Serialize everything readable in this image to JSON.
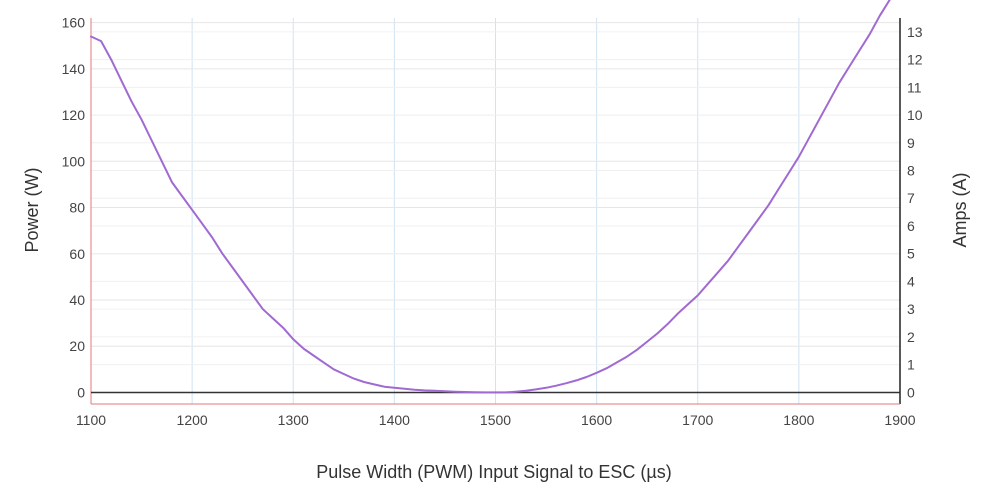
{
  "chart_data": {
    "type": "line",
    "xlabel": "Pulse Width (PWM) Input Signal to ESC (µs)",
    "ylabel": "Power (W)",
    "y2label": "Amps (A)",
    "xlim": [
      1100,
      1900
    ],
    "ylim": [
      -5,
      162
    ],
    "y2lim": [
      -0.42,
      13.5
    ],
    "xticks": [
      "1100",
      "1200",
      "1300",
      "1400",
      "1500",
      "1600",
      "1700",
      "1800",
      "1900"
    ],
    "yticks": [
      "0",
      "20",
      "40",
      "60",
      "80",
      "100",
      "120",
      "140",
      "160"
    ],
    "y2ticks": [
      "0",
      "1",
      "2",
      "3",
      "4",
      "5",
      "6",
      "7",
      "8",
      "9",
      "10",
      "11",
      "12",
      "13"
    ],
    "grid": true,
    "series": [
      {
        "color": "#a06ad2",
        "x": [
          1100,
          1110,
          1120,
          1130,
          1140,
          1150,
          1160,
          1170,
          1180,
          1190,
          1200,
          1210,
          1220,
          1230,
          1240,
          1250,
          1260,
          1270,
          1280,
          1290,
          1300,
          1310,
          1320,
          1330,
          1340,
          1350,
          1360,
          1370,
          1380,
          1390,
          1400,
          1410,
          1420,
          1430,
          1440,
          1450,
          1460,
          1470,
          1480,
          1490,
          1500,
          1510,
          1520,
          1530,
          1540,
          1550,
          1560,
          1570,
          1580,
          1590,
          1600,
          1610,
          1620,
          1630,
          1640,
          1650,
          1660,
          1670,
          1680,
          1690,
          1700,
          1710,
          1720,
          1730,
          1740,
          1750,
          1760,
          1770,
          1780,
          1790,
          1800,
          1810,
          1820,
          1830,
          1840,
          1850,
          1860,
          1870,
          1880,
          1890,
          1900
        ],
        "y": [
          154,
          152,
          144,
          135,
          126,
          118,
          109,
          100,
          91,
          85,
          79,
          73,
          67,
          60,
          54,
          48,
          42,
          36,
          32,
          28,
          23,
          19,
          16,
          13,
          10,
          8,
          6,
          4.5,
          3.5,
          2.5,
          2.0,
          1.6,
          1.2,
          0.9,
          0.7,
          0.5,
          0.3,
          0.2,
          0.1,
          0.0,
          0.0,
          0.0,
          0.3,
          0.7,
          1.3,
          2.0,
          2.9,
          4.0,
          5.2,
          6.7,
          8.5,
          10.5,
          13,
          15.5,
          18.5,
          22,
          25.5,
          29.5,
          34,
          38,
          42,
          47,
          52,
          57,
          63,
          69,
          75,
          81,
          88,
          95,
          102,
          110,
          118,
          126,
          134,
          141,
          148,
          155,
          163,
          170,
          178
        ]
      }
    ]
  }
}
